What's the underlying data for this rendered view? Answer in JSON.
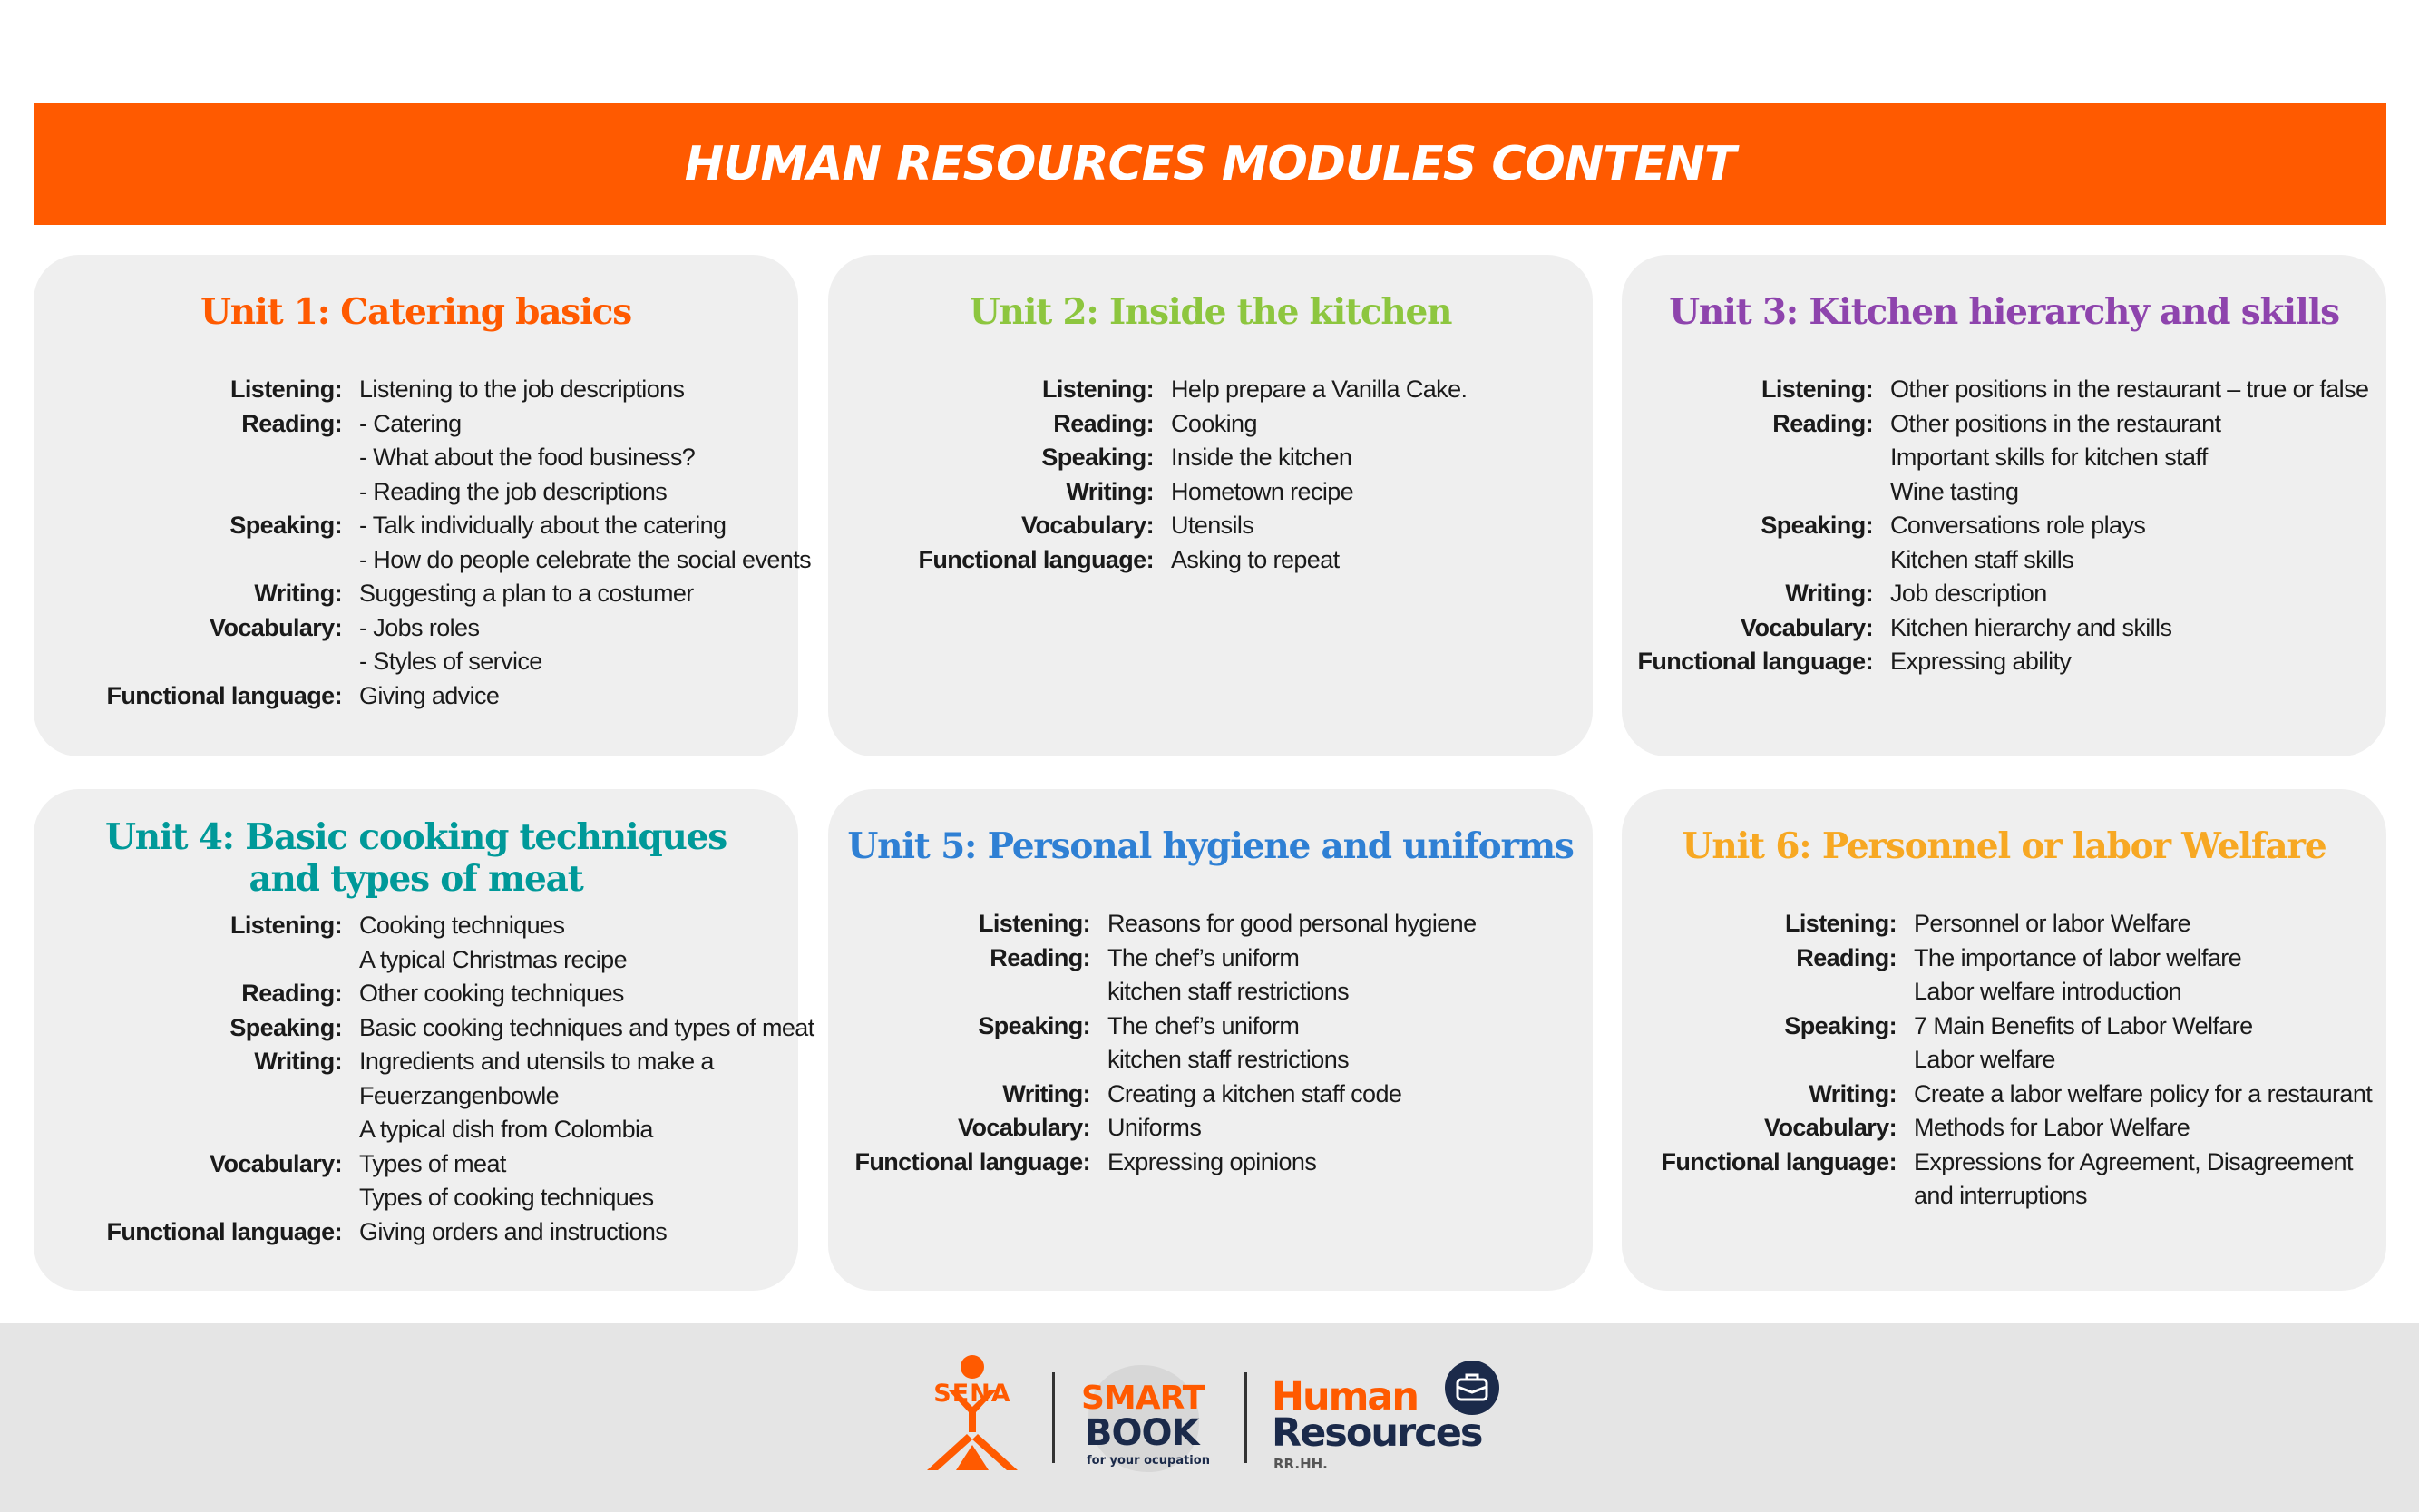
{
  "header": {
    "title": "HUMAN RESOURCES MODULES CONTENT"
  },
  "colors": {
    "accent": "#ff5a00",
    "unit1": "#ff5a00",
    "unit2": "#8dc63f",
    "unit3": "#8e44ad",
    "unit4": "#009999",
    "unit5": "#2f80d4",
    "unit6": "#f7a823",
    "dark_navy": "#1b2a4a"
  },
  "units": [
    {
      "title_lines": [
        "Unit 1:  Catering basics"
      ],
      "rows": [
        {
          "label": "Listening:",
          "values": [
            "Listening to the job descriptions"
          ]
        },
        {
          "label": "Reading:",
          "values": [
            "- Catering",
            "- What about the food business?",
            "- Reading the job descriptions"
          ]
        },
        {
          "label": "Speaking:",
          "values": [
            "- Talk individually about the catering",
            "- How do people celebrate the social events"
          ]
        },
        {
          "label": "Writing:",
          "values": [
            "Suggesting a plan to a costumer"
          ]
        },
        {
          "label": "Vocabulary:",
          "values": [
            "- Jobs roles",
            "- Styles of service"
          ]
        },
        {
          "label": "Functional language:",
          "values": [
            "Giving advice"
          ]
        }
      ]
    },
    {
      "title_lines": [
        "Unit 2: Inside the kitchen"
      ],
      "rows": [
        {
          "label": "Listening:",
          "values": [
            "Help prepare a Vanilla Cake."
          ]
        },
        {
          "label": "Reading:",
          "values": [
            "Cooking"
          ]
        },
        {
          "label": "Speaking:",
          "values": [
            "Inside the kitchen"
          ]
        },
        {
          "label": "Writing:",
          "values": [
            "Hometown recipe"
          ]
        },
        {
          "label": "Vocabulary:",
          "values": [
            "Utensils"
          ]
        },
        {
          "label": "Functional language:",
          "values": [
            "Asking to repeat"
          ]
        }
      ]
    },
    {
      "title_lines": [
        "Unit 3: Kitchen hierarchy and skills"
      ],
      "rows": [
        {
          "label": "Listening:",
          "values": [
            "Other positions in the restaurant – true or false"
          ]
        },
        {
          "label": "Reading:",
          "values": [
            "Other positions in the restaurant",
            "Important skills for kitchen staff",
            "Wine tasting"
          ]
        },
        {
          "label": "Speaking:",
          "values": [
            "Conversations role plays",
            "Kitchen staff skills"
          ]
        },
        {
          "label": "Writing:",
          "values": [
            "Job description"
          ]
        },
        {
          "label": "Vocabulary:",
          "values": [
            "Kitchen hierarchy and skills"
          ]
        },
        {
          "label": "Functional language:",
          "values": [
            "Expressing ability"
          ]
        }
      ]
    },
    {
      "title_lines": [
        "Unit 4: Basic cooking techniques",
        "and types of meat"
      ],
      "rows": [
        {
          "label": "Listening:",
          "values": [
            "Cooking techniques",
            "A typical Christmas recipe"
          ]
        },
        {
          "label": "Reading:",
          "values": [
            "Other cooking techniques"
          ]
        },
        {
          "label": "Speaking:",
          "values": [
            "Basic cooking techniques and types of meat"
          ]
        },
        {
          "label": "Writing:",
          "values": [
            "Ingredients and utensils to make a",
            "Feuerzangenbowle",
            "A typical dish from Colombia"
          ]
        },
        {
          "label": "Vocabulary:",
          "values": [
            "Types of meat",
            "Types of cooking techniques"
          ]
        },
        {
          "label": "Functional language:",
          "values": [
            "Giving orders and instructions"
          ]
        }
      ]
    },
    {
      "title_lines": [
        "Unit 5: Personal hygiene and uniforms"
      ],
      "rows": [
        {
          "label": "Listening:",
          "values": [
            "Reasons for good personal hygiene"
          ]
        },
        {
          "label": "Reading:",
          "values": [
            "The chef’s uniform",
            "kitchen staff restrictions"
          ]
        },
        {
          "label": "Speaking:",
          "values": [
            "The chef’s uniform",
            "kitchen staff restrictions"
          ]
        },
        {
          "label": "Writing:",
          "values": [
            "Creating a kitchen staff code"
          ]
        },
        {
          "label": "Vocabulary:",
          "values": [
            "Uniforms"
          ]
        },
        {
          "label": "Functional language:",
          "values": [
            "Expressing opinions"
          ]
        }
      ]
    },
    {
      "title_lines": [
        "Unit 6: Personnel or labor Welfare"
      ],
      "rows": [
        {
          "label": "Listening:",
          "values": [
            "Personnel or labor Welfare"
          ]
        },
        {
          "label": "Reading:",
          "values": [
            "The importance of labor welfare",
            "Labor welfare introduction"
          ]
        },
        {
          "label": "Speaking:",
          "values": [
            "7 Main Benefits of Labor Welfare",
            "Labor welfare"
          ]
        },
        {
          "label": "Writing:",
          "values": [
            "Create a labor welfare policy for a restaurant"
          ]
        },
        {
          "label": "Vocabulary:",
          "values": [
            "Methods for Labor Welfare"
          ]
        },
        {
          "label": "Functional language:",
          "values": [
            "Expressions for Agreement, Disagreement",
            "and interruptions"
          ]
        }
      ]
    }
  ],
  "footer": {
    "sena_logo": {
      "text": "SENA",
      "icon": "sena-figure-icon"
    },
    "smartbook_logo": {
      "line1": "SMART",
      "line2": "BOOK",
      "tagline": "for your ocupation"
    },
    "hr_logo": {
      "line1": "Human",
      "line2": "Resources",
      "abbr": "RR.HH.",
      "icon": "briefcase-icon"
    }
  }
}
